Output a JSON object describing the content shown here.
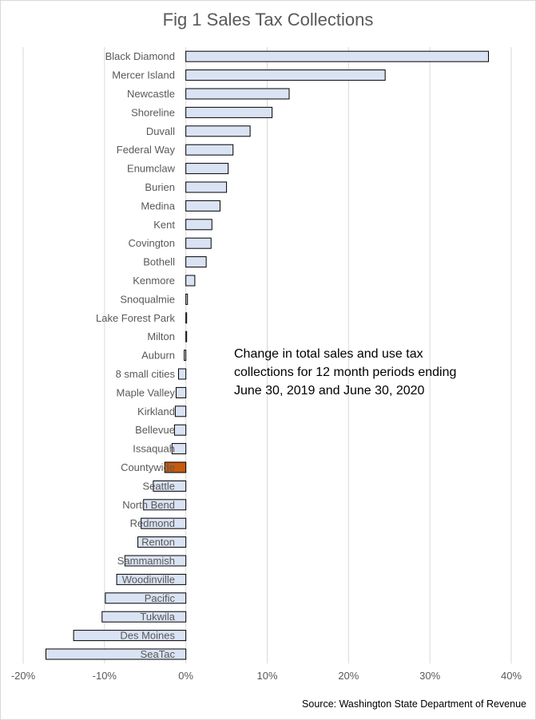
{
  "chart_data": {
    "type": "bar",
    "orientation": "horizontal",
    "title": "Fig 1 Sales Tax Collections",
    "xlabel": "",
    "ylabel": "",
    "xlim": [
      -20,
      40
    ],
    "x_ticks": [
      "-20%",
      "-10%",
      "0%",
      "10%",
      "20%",
      "30%",
      "40%"
    ],
    "grid": true,
    "categories": [
      "Black Diamond",
      "Mercer Island",
      "Newcastle",
      "Shoreline",
      "Duvall",
      "Federal Way",
      "Enumclaw",
      "Burien",
      "Medina",
      "Kent",
      "Covington",
      "Bothell",
      "Kenmore",
      "Snoqualmie",
      "Lake Forest Park",
      "Milton",
      "Auburn",
      "8 small cities",
      "Maple Valley",
      "Kirkland",
      "Bellevue",
      "Issaquah",
      "Countywide",
      "Seattle",
      "North Bend",
      "Redmond",
      "Renton",
      "Sammamish",
      "Woodinville",
      "Pacific",
      "Tukwila",
      "Des Moines",
      "SeaTac"
    ],
    "values": [
      37.2,
      24.5,
      12.7,
      10.6,
      7.9,
      5.8,
      5.2,
      5.0,
      4.2,
      3.2,
      3.1,
      2.5,
      1.1,
      0.2,
      0.1,
      0.1,
      -0.2,
      -0.9,
      -1.2,
      -1.3,
      -1.4,
      -1.7,
      -2.6,
      -4.0,
      -5.2,
      -5.5,
      -5.9,
      -7.5,
      -8.5,
      -9.9,
      -10.3,
      -13.8,
      -17.2
    ],
    "highlight": "Countywide",
    "colors": {
      "bar": "#dae3f3",
      "highlight": "#c55a11",
      "bar_edge": "#000000",
      "grid": "#d9d9d9",
      "text": "#595959"
    },
    "annotations": [
      {
        "line1": "Change in total sales and use tax",
        "line2": "collections for 12 month periods ending",
        "line3": "June 30, 2019 and June 30, 2020"
      }
    ],
    "source": "Source: Washington State Department of Revenue"
  }
}
